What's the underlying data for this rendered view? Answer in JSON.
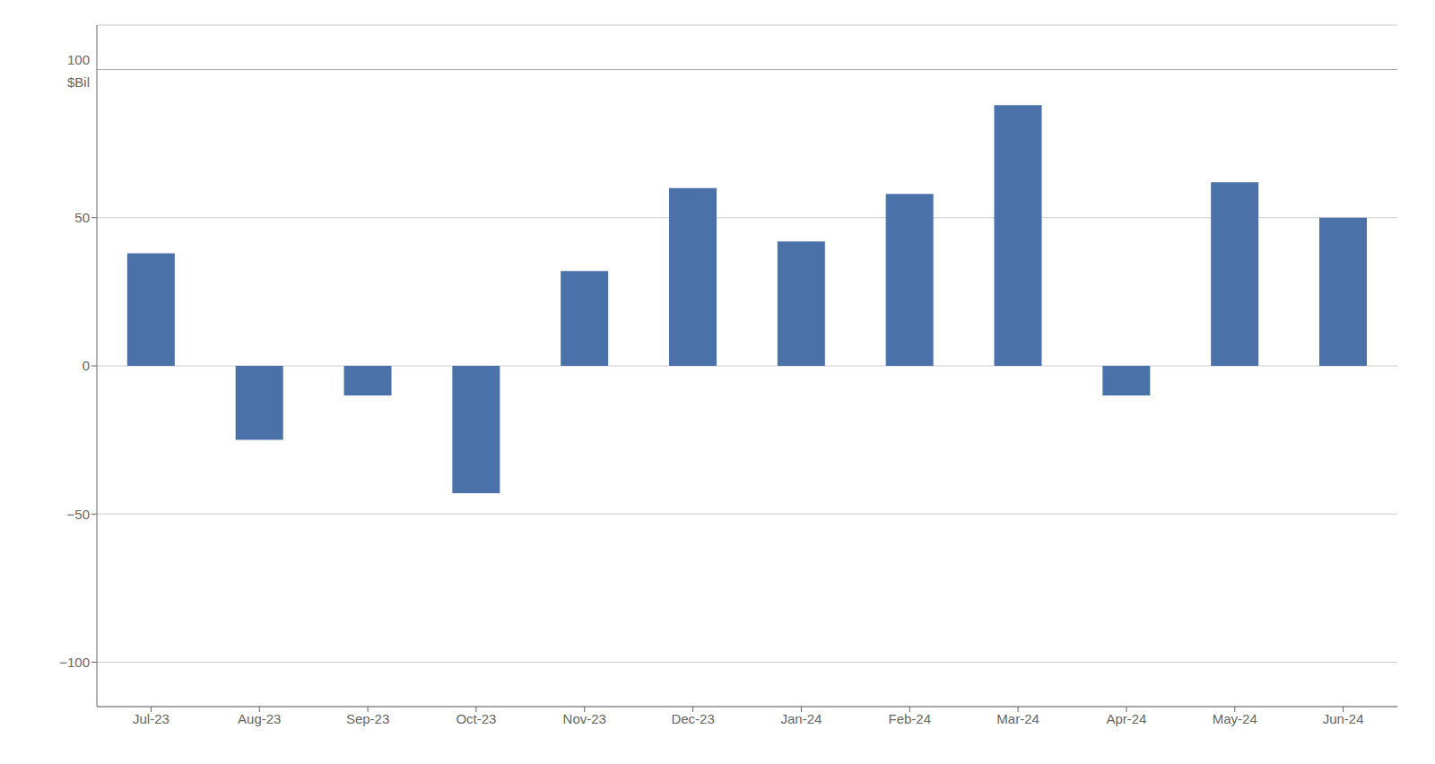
{
  "chart_data": {
    "type": "bar",
    "categories": [
      "Jul-23",
      "Aug-23",
      "Sep-23",
      "Oct-23",
      "Nov-23",
      "Dec-23",
      "Jan-24",
      "Feb-24",
      "Mar-24",
      "Apr-24",
      "May-24",
      "Jun-24"
    ],
    "values": [
      38,
      -25,
      -10,
      -43,
      32,
      60,
      42,
      58,
      88,
      -10,
      62,
      50
    ],
    "color": "#4a72a8",
    "ylim": [
      -115,
      115
    ],
    "yticks": [
      {
        "value": -100,
        "label": "−100"
      },
      {
        "value": -50,
        "label": "−50"
      },
      0,
      50
    ],
    "grid": true,
    "reference_lines": [
      100
    ],
    "annotations": [
      {
        "text": "100",
        "y": 100
      },
      {
        "text": "$Bil",
        "y": 100
      }
    ]
  }
}
